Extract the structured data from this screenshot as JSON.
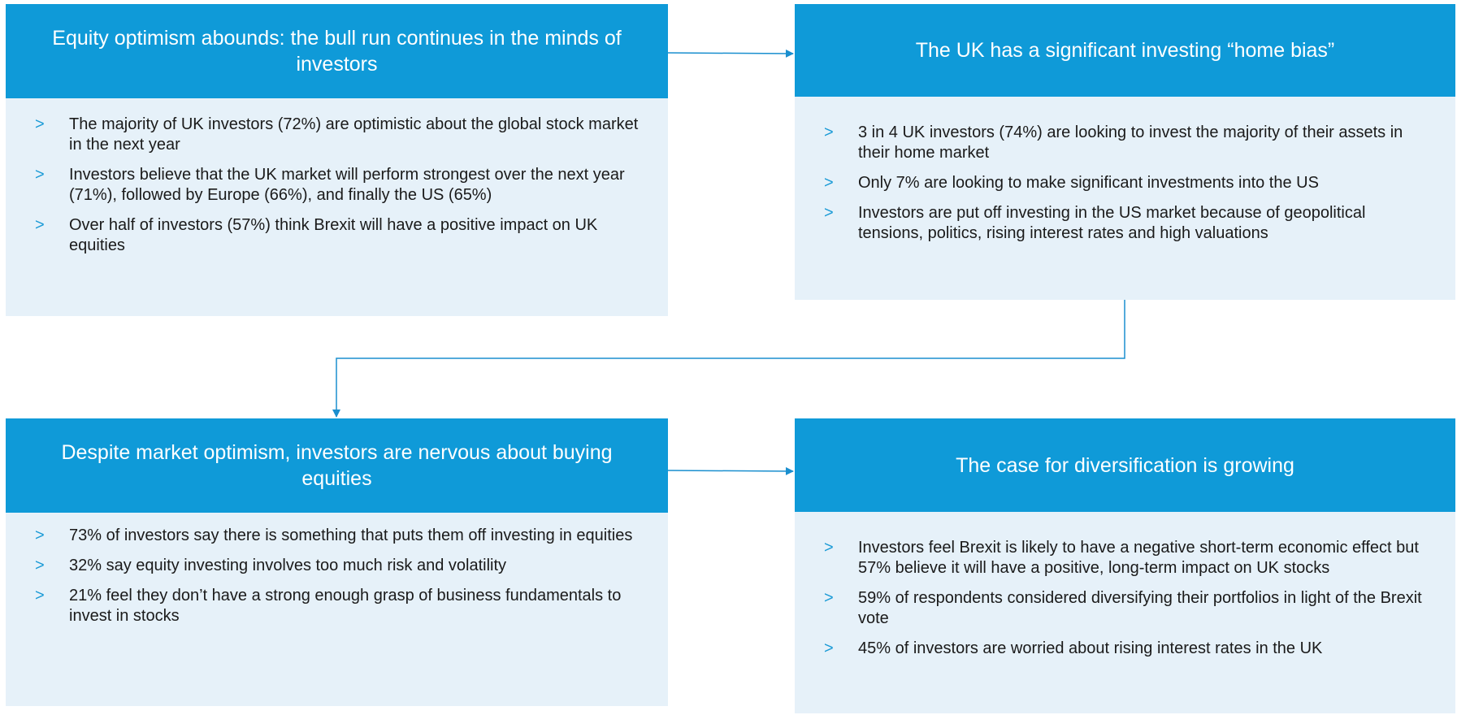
{
  "boxes": [
    {
      "title": "Equity optimism abounds: the bull run continues in the minds of investors",
      "bullets": [
        "The majority of UK investors (72%) are optimistic about the global stock market in the next year",
        "Investors believe that the UK market will perform strongest over the next year (71%), followed by Europe (66%), and finally the US (65%)",
        "Over half of investors (57%) think Brexit will have a positive impact on UK equities"
      ]
    },
    {
      "title": "The UK has a significant investing “home bias”",
      "bullets": [
        "3 in 4 UK investors (74%) are looking to invest the majority of their assets in their home market",
        "Only 7% are looking to make significant investments into the US",
        "Investors are put off investing in the US market because of geopolitical tensions, politics, rising interest rates and high valuations"
      ]
    },
    {
      "title": "Despite market optimism, investors are nervous about buying equities",
      "bullets": [
        "73% of investors say there is something that puts them off investing in equities",
        "32% say equity investing involves too much risk and volatility",
        "21% feel they don’t have a strong enough grasp of business fundamentals to invest in stocks"
      ]
    },
    {
      "title": "The case for diversification is growing",
      "bullets": [
        "Investors feel Brexit is likely to have a negative short-term economic effect but 57% believe it will have a positive, long-term impact on UK stocks",
        "59% of respondents considered diversifying their portfolios in light of the Brexit vote",
        "45% of investors are worried about rising interest rates in the UK"
      ]
    }
  ],
  "bullet_marker": ">"
}
